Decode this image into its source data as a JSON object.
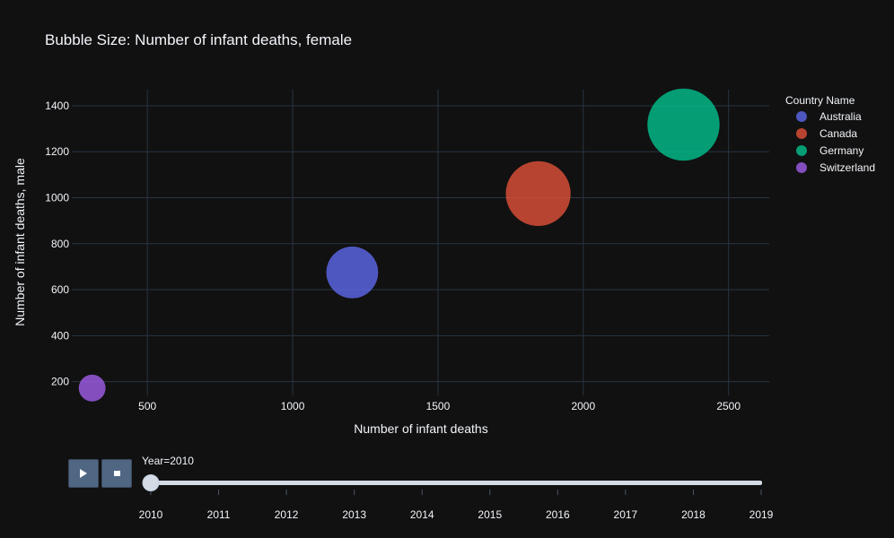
{
  "colors": {
    "background": "#111111",
    "grid": "#283442",
    "text": "#f2f5fa",
    "Australia": "#636efa",
    "Canada": "#ef553b",
    "Germany": "#00cc96",
    "Switzerland": "#ab63fa",
    "button": "#506784",
    "slider_track": "#d3dce6"
  },
  "chart_data": {
    "type": "scatter",
    "title": "Bubble Size: Number of infant deaths, female",
    "xlabel": "Number of infant deaths",
    "ylabel": "Number of infant deaths, male",
    "xlim": [
      240,
      2640
    ],
    "ylim": [
      140,
      1470
    ],
    "x_ticks": [
      500,
      1000,
      1500,
      2000,
      2500
    ],
    "y_ticks": [
      200,
      400,
      600,
      800,
      1000,
      1200,
      1400
    ],
    "grid": true,
    "legend_title": "Country Name",
    "legend_position": "top-right",
    "series": [
      {
        "name": "Australia",
        "x": 1205,
        "y": 675,
        "size": 530
      },
      {
        "name": "Canada",
        "x": 1845,
        "y": 1018,
        "size": 830
      },
      {
        "name": "Germany",
        "x": 2345,
        "y": 1318,
        "size": 1030
      },
      {
        "name": "Switzerland",
        "x": 310,
        "y": 172,
        "size": 140
      }
    ]
  },
  "animation": {
    "current_label": "Year=2010",
    "current_index": 0,
    "years": [
      "2010",
      "2011",
      "2012",
      "2013",
      "2014",
      "2015",
      "2016",
      "2017",
      "2018",
      "2019"
    ],
    "play_icon": "play-icon",
    "stop_icon": "stop-icon"
  }
}
